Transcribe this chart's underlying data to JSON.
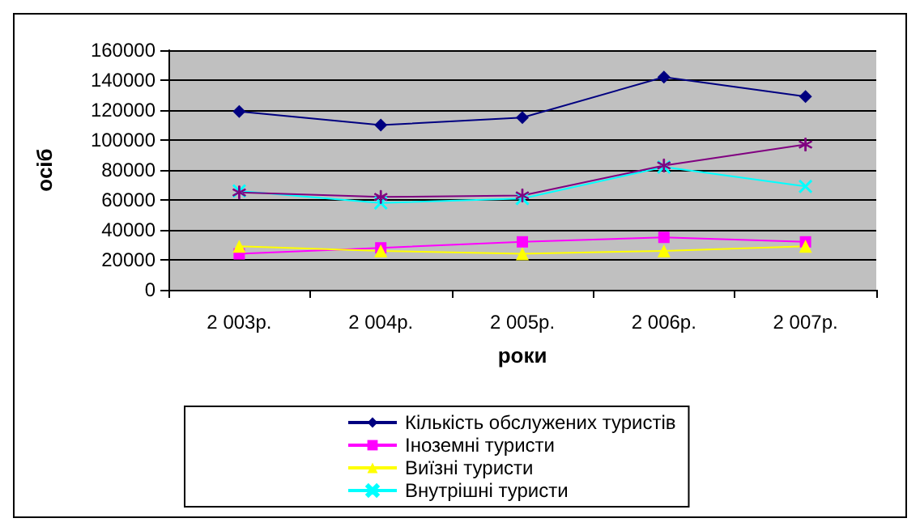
{
  "chart_data": {
    "type": "line",
    "xlabel": "роки",
    "ylabel": "осіб",
    "categories": [
      "2 003р.",
      "2 004р.",
      "2 005р.",
      "2 006р.",
      "2 007р."
    ],
    "series": [
      {
        "name": "Кількість обслужених туристів",
        "color": "#000080",
        "marker": "diamond",
        "values": [
          119000,
          110000,
          115000,
          142000,
          129000
        ]
      },
      {
        "name": "Іноземні туристи",
        "color": "#ff00ff",
        "marker": "square",
        "values": [
          24000,
          28000,
          32000,
          35000,
          32000
        ]
      },
      {
        "name": "Виїзні туристи",
        "color": "#ffff00",
        "marker": "triangle",
        "values": [
          29000,
          26000,
          24000,
          26000,
          29000
        ]
      },
      {
        "name": "Внутрішні туристи",
        "color": "#00ffff",
        "marker": "cross",
        "values": [
          66000,
          58000,
          61000,
          82000,
          69000
        ]
      },
      {
        "color": "#800080",
        "marker": "star",
        "values": [
          65000,
          62000,
          63000,
          83000,
          97000
        ]
      }
    ],
    "ylim": [
      0,
      160000
    ],
    "yticks": [
      0,
      20000,
      40000,
      60000,
      80000,
      100000,
      120000,
      140000,
      160000
    ],
    "grid": "y",
    "legend": "bottom"
  }
}
